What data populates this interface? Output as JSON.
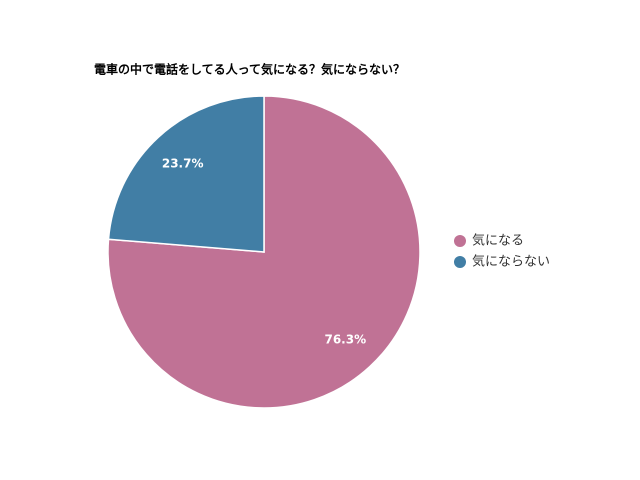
{
  "chart_data": {
    "type": "pie",
    "title": "電車の中で電話をしてる人って気になる？気にならない？",
    "categories": [
      "気になる",
      "気にならない"
    ],
    "values": [
      76.3,
      23.7
    ],
    "value_labels": [
      "76.3%",
      "23.7%"
    ],
    "colors": [
      "#c07295",
      "#417ea5"
    ],
    "legend": "right"
  }
}
